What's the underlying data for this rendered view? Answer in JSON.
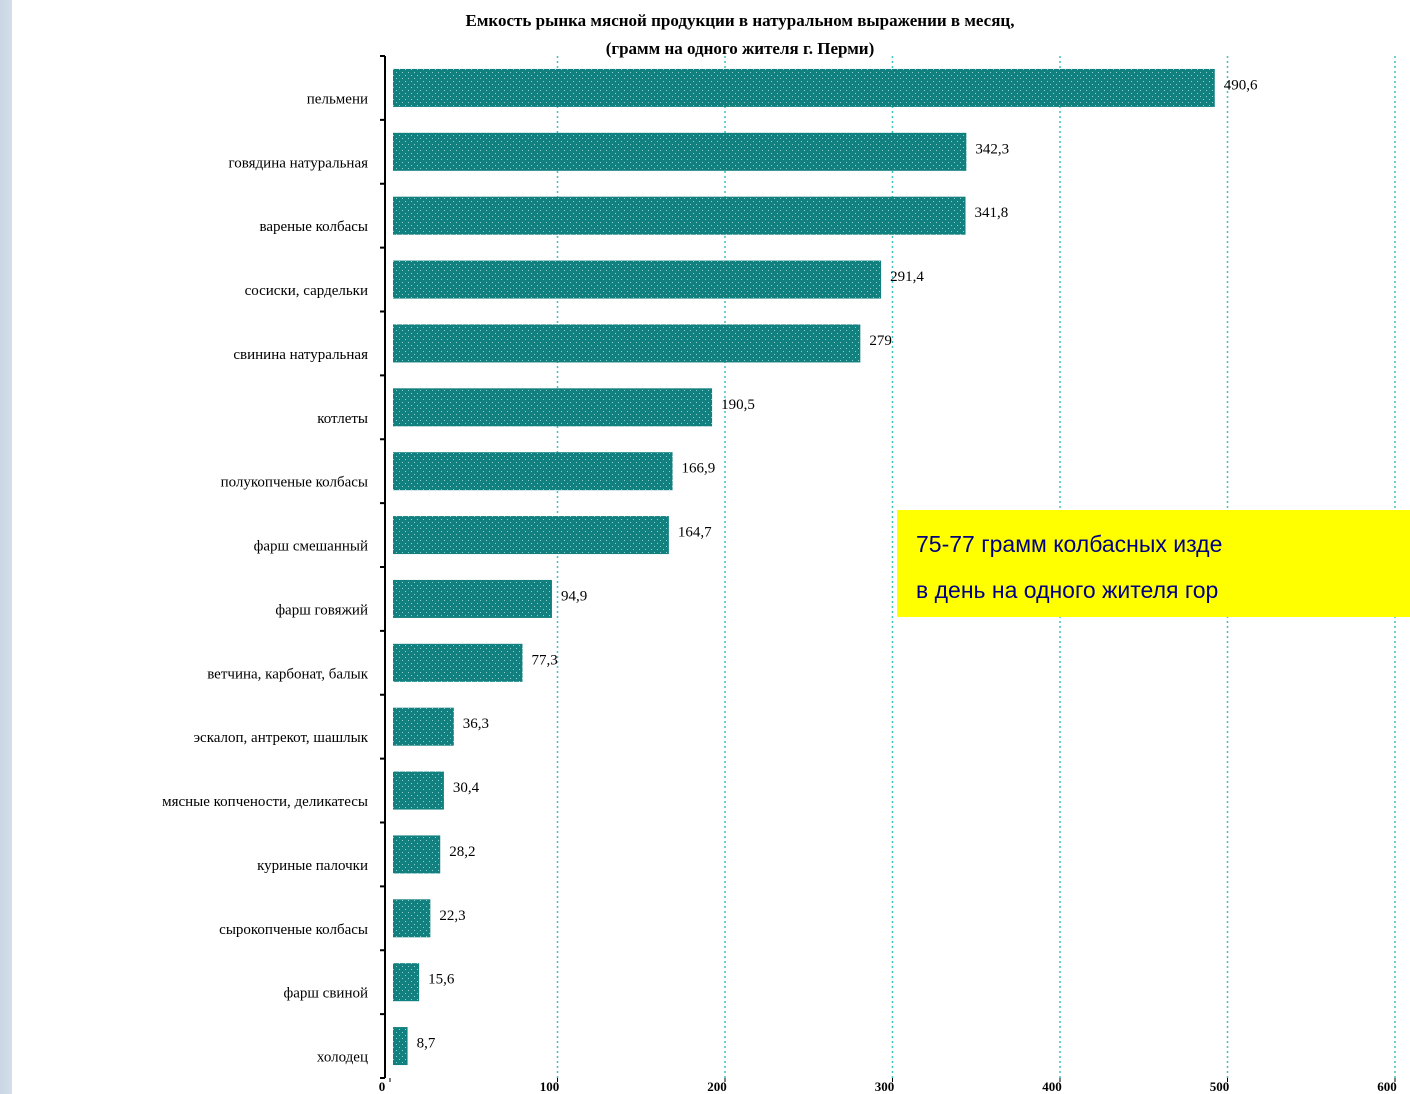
{
  "chart_data": {
    "type": "bar",
    "orientation": "horizontal",
    "title": "Емкость рынка мясной продукции в натуральном выражении в месяц,",
    "subtitle": "(грамм на одного жителя г. Перми)",
    "categories": [
      "пельмени",
      "говядина натуральная",
      "вареные колбасы",
      "сосиски, сардельки",
      "свинина натуральная",
      "котлеты",
      "полукопченые колбасы",
      "фарш смешанный",
      "фарш говяжий",
      "ветчина, карбонат, балык",
      "эскалоп, антрекот, шашлык",
      "мясные копчености, деликатесы",
      "куриные палочки",
      "сырокопченые колбасы",
      "фарш свиной",
      "холодец"
    ],
    "values": [
      490.6,
      342.3,
      341.8,
      291.4,
      279,
      190.5,
      166.9,
      164.7,
      94.9,
      77.3,
      36.3,
      30.4,
      28.2,
      22.3,
      15.6,
      8.7
    ],
    "value_labels": [
      "490,6",
      "342,3",
      "341,8",
      "291,4",
      "279",
      "190,5",
      "166,9",
      "164,7",
      "94,9",
      "77,3",
      "36,3",
      "30,4",
      "28,2",
      "22,3",
      "15,6",
      "8,7"
    ],
    "color": "#138080",
    "xlim": [
      0,
      600
    ],
    "xticks": [
      0,
      100,
      200,
      300,
      400,
      500,
      600
    ],
    "grid": true,
    "annotation": [
      "75-77 грамм колбасных изде",
      "в  день на одного жителя гор"
    ]
  }
}
